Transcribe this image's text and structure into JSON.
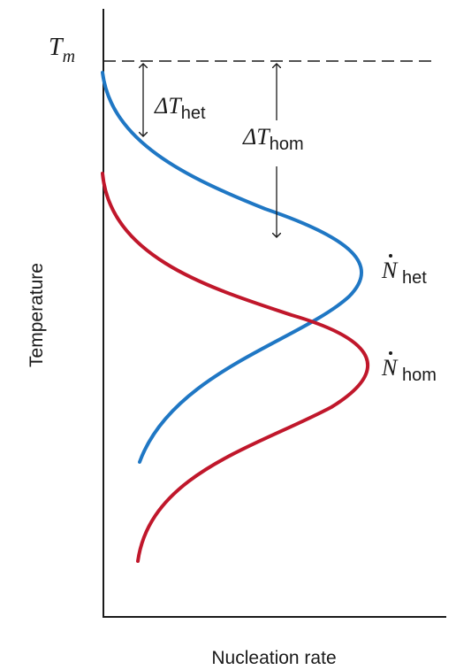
{
  "chart_data": {
    "type": "line",
    "xlabel": "Nucleation rate",
    "ylabel": "Temperature",
    "tm_label": {
      "main": "T",
      "sub": "m"
    },
    "delta_het": {
      "main": "ΔT",
      "sub": "het"
    },
    "delta_hom": {
      "main": "ΔT",
      "sub": "hom"
    },
    "series": [
      {
        "name": "Ṅhet",
        "name_main": "N",
        "name_sub": "het",
        "color": "#1f77c4"
      },
      {
        "name": "Ṅhom",
        "name_main": "N",
        "name_sub": "hom",
        "color": "#c0172b"
      }
    ],
    "colors": {
      "axis": "#1a1a1a",
      "text": "#1a1a1a"
    }
  }
}
